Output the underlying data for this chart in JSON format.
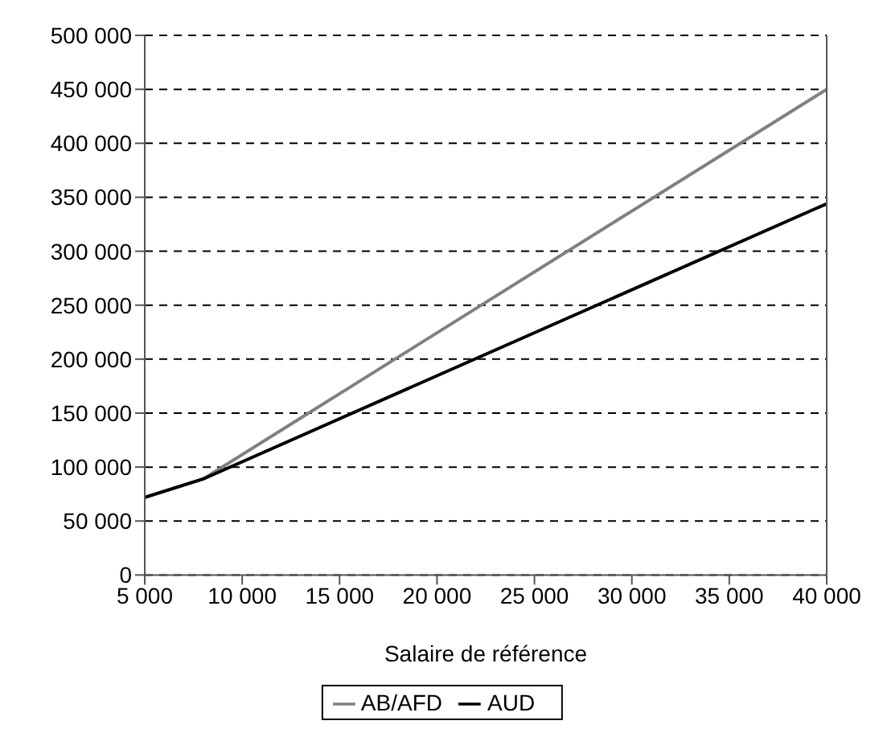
{
  "chart_data": {
    "type": "line",
    "xlabel": "Salaire de référence",
    "x": [
      5000,
      8000,
      40000
    ],
    "series": [
      {
        "name": "AB/AFD",
        "color": "#808080",
        "values": [
          72000,
          89000,
          450000
        ]
      },
      {
        "name": "AUD",
        "color": "#000000",
        "values": [
          72000,
          89000,
          344000
        ]
      }
    ],
    "xlim": [
      5000,
      40000
    ],
    "xticks": [
      {
        "value": 5000,
        "label": "5 000"
      },
      {
        "value": 10000,
        "label": "10 000"
      },
      {
        "value": 15000,
        "label": "15 000"
      },
      {
        "value": 20000,
        "label": "20 000"
      },
      {
        "value": 25000,
        "label": "25 000"
      },
      {
        "value": 30000,
        "label": "30 000"
      },
      {
        "value": 35000,
        "label": "35 000"
      },
      {
        "value": 40000,
        "label": "40 000"
      }
    ],
    "ylim": [
      0,
      500000
    ],
    "yticks": [
      0,
      {
        "value": 50000,
        "label": "50 000"
      },
      {
        "value": 100000,
        "label": "100 000"
      },
      {
        "value": 150000,
        "label": "150 000"
      },
      {
        "value": 200000,
        "label": "200 000"
      },
      {
        "value": 250000,
        "label": "250 000"
      },
      {
        "value": 300000,
        "label": "300 000"
      },
      {
        "value": 350000,
        "label": "350 000"
      },
      {
        "value": 400000,
        "label": "400 000"
      },
      {
        "value": 450000,
        "label": "450 000"
      },
      {
        "value": 500000,
        "label": "500 000"
      }
    ],
    "grid": "y",
    "legend": "bottom",
    "marker": "none",
    "line_style": "solid"
  }
}
